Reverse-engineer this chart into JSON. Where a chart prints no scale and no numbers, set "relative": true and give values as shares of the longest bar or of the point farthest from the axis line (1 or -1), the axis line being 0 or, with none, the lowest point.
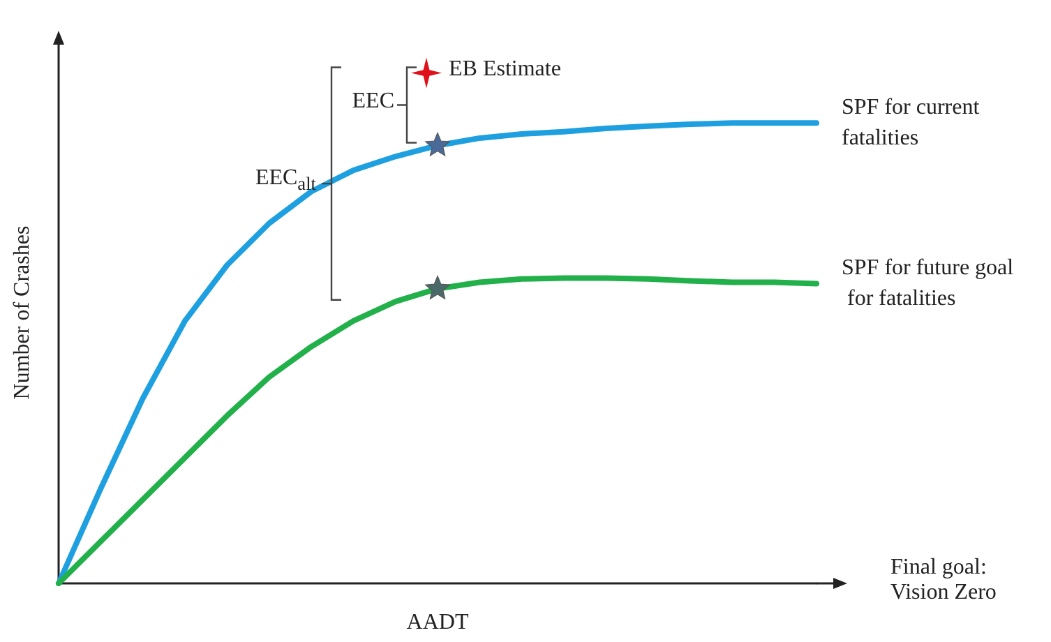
{
  "chart_data": {
    "type": "line",
    "relative": true,
    "xlabel": "AADT",
    "ylabel": "Number of Crashes",
    "categories": [
      null,
      null,
      null,
      null,
      null,
      null,
      null,
      null,
      null,
      null,
      null,
      null,
      null,
      null,
      null,
      null,
      null,
      null,
      null
    ],
    "series": [
      {
        "name": "SPF for current fatalities",
        "color": "#1ea0e0",
        "values": [
          0,
          0.206,
          0.402,
          0.57,
          0.691,
          0.782,
          0.851,
          0.897,
          0.927,
          0.951,
          0.967,
          0.976,
          0.981,
          0.988,
          0.993,
          0.997,
          1,
          1,
          1
        ]
      },
      {
        "name": "SPF for future goal for fatalities",
        "color": "#22b04a",
        "values": [
          0,
          0.091,
          0.182,
          0.273,
          0.364,
          0.448,
          0.514,
          0.57,
          0.612,
          0.64,
          0.654,
          0.661,
          0.663,
          0.663,
          0.661,
          0.657,
          0.654,
          0.654,
          0.651
        ]
      }
    ],
    "grid": false,
    "annotations": [
      "EEC",
      "EEC$_{alt}$",
      "EB Estimate",
      "Final goal: Vision Zero"
    ]
  }
}
